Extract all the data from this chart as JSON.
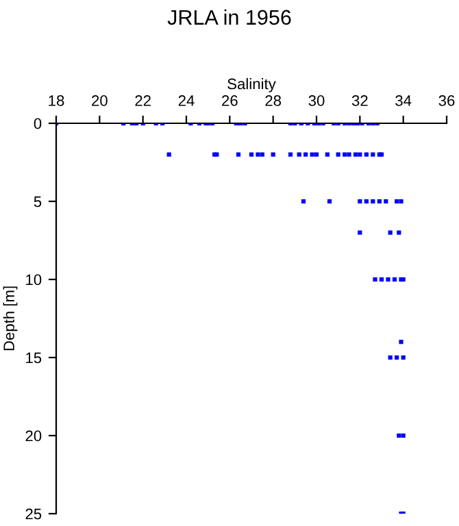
{
  "chart_data": {
    "type": "scatter",
    "title": "JRLA in 1956",
    "xlabel": "Salinity",
    "ylabel": "Depth [m]",
    "x": [
      18.0,
      21.1,
      21.5,
      21.7,
      22.0,
      22.6,
      22.9,
      24.2,
      24.6,
      24.9,
      25.0,
      25.2,
      26.3,
      26.5,
      26.7,
      28.8,
      29.0,
      29.3,
      29.6,
      29.9,
      30.1,
      30.3,
      30.8,
      31.0,
      31.3,
      31.5,
      31.7,
      31.9,
      32.1,
      32.4,
      32.6,
      32.8,
      23.2,
      25.3,
      25.4,
      26.4,
      27.0,
      27.3,
      27.5,
      28.0,
      28.8,
      29.2,
      29.5,
      29.8,
      30.0,
      30.5,
      31.0,
      31.3,
      31.5,
      31.8,
      32.0,
      32.3,
      32.6,
      32.9,
      33.0,
      29.4,
      30.6,
      32.0,
      32.3,
      32.6,
      32.9,
      33.2,
      33.7,
      33.9,
      32.0,
      33.4,
      33.8,
      32.7,
      33.0,
      33.3,
      33.6,
      33.9,
      34.0,
      33.9,
      33.4,
      33.7,
      34.0,
      33.8,
      34.0,
      33.9,
      34.0
    ],
    "series": [
      {
        "color": "#0000ff",
        "values": [
          0,
          0,
          0,
          0,
          0,
          0,
          0,
          0,
          0,
          0,
          0,
          0,
          0,
          0,
          0,
          0,
          0,
          0,
          0,
          0,
          0,
          0,
          0,
          0,
          0,
          0,
          0,
          0,
          0,
          0,
          0,
          0,
          2,
          2,
          2,
          2,
          2,
          2,
          2,
          2,
          2,
          2,
          2,
          2,
          2,
          2,
          2,
          2,
          2,
          2,
          2,
          2,
          2,
          2,
          2,
          5,
          5,
          5,
          5,
          5,
          5,
          5,
          5,
          5,
          7,
          7,
          7,
          10,
          10,
          10,
          10,
          10,
          10,
          14,
          15,
          15,
          15,
          20,
          20,
          25,
          25
        ]
      }
    ],
    "xlim": [
      18,
      36
    ],
    "xticks": [
      18,
      20,
      22,
      24,
      26,
      28,
      30,
      32,
      34,
      36
    ],
    "ylim": [
      25,
      0
    ],
    "yticks": [
      0,
      5,
      10,
      15,
      20,
      25
    ],
    "marker": "square",
    "grid": false,
    "legend": false
  }
}
